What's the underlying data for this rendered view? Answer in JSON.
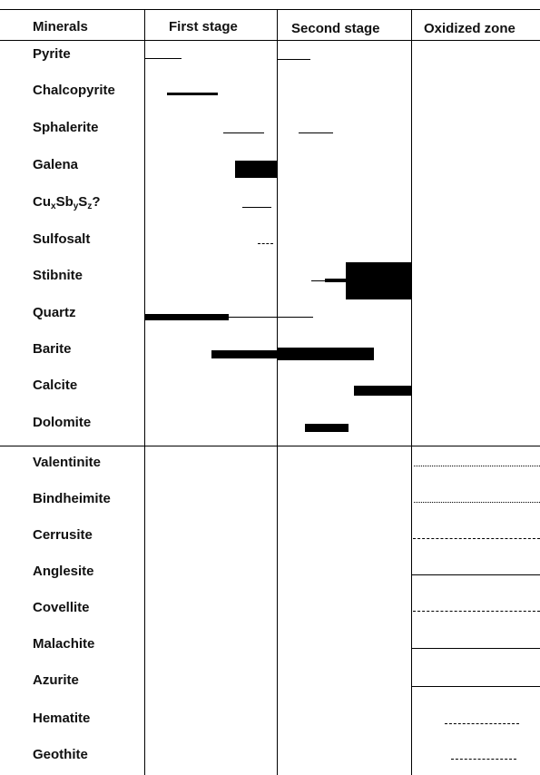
{
  "headers": {
    "minerals": "Minerals",
    "first_stage": "First stage",
    "second_stage": "Second stage",
    "oxidized_zone": "Oxidized zone"
  },
  "minerals": [
    "Pyrite",
    "Chalcopyrite",
    "Sphalerite",
    "Galena",
    "CuxSbySz?",
    "Sulfosalt",
    "Stibnite",
    "Quartz",
    "Barite",
    "Calcite",
    "Dolomite",
    "Valentinite",
    "Bindheimite",
    "Cerrusite",
    "Anglesite",
    "Covellite",
    "Malachite",
    "Azurite",
    "Hematite",
    "Geothite"
  ],
  "formula_parts": {
    "cu": "Cu",
    "x": "x",
    "sb": "Sb",
    "y": "y",
    "s": "S",
    "z": "z",
    "q": "?"
  }
}
